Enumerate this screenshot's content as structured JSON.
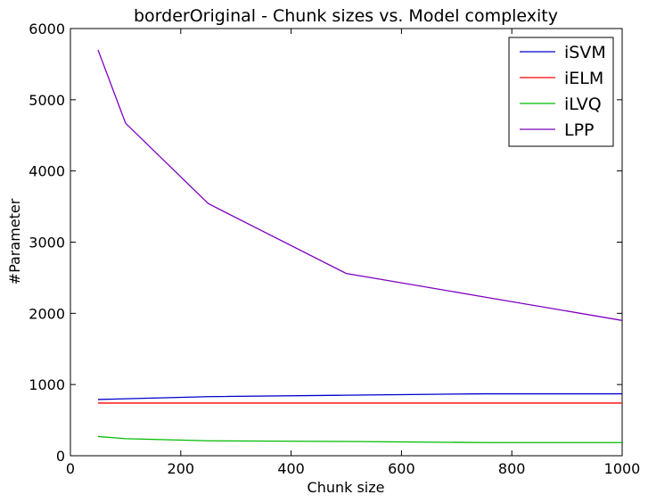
{
  "chart_data": {
    "type": "line",
    "title": "borderOriginal - Chunk sizes vs. Model complexity",
    "xlabel": "Chunk size",
    "ylabel": "#Parameter",
    "xlim": [
      0,
      1000
    ],
    "ylim": [
      0,
      6000
    ],
    "xticks": [
      0,
      200,
      400,
      600,
      800,
      1000
    ],
    "yticks": [
      0,
      1000,
      2000,
      3000,
      4000,
      5000,
      6000
    ],
    "legend_position": "top-right",
    "grid": false,
    "x": [
      50,
      100,
      250,
      500,
      750,
      1000
    ],
    "series": [
      {
        "name": "iSVM",
        "color": "#0000cc",
        "values": [
          790,
          800,
          830,
          850,
          870,
          870
        ]
      },
      {
        "name": "iELM",
        "color": "#ff0000",
        "values": [
          740,
          740,
          740,
          740,
          740,
          740
        ]
      },
      {
        "name": "iLVQ",
        "color": "#00bb00",
        "values": [
          270,
          240,
          210,
          200,
          185,
          185
        ]
      },
      {
        "name": "LPP",
        "color": "#7f00bf",
        "values": [
          5700,
          4670,
          3540,
          2560,
          2230,
          1900
        ]
      }
    ]
  }
}
